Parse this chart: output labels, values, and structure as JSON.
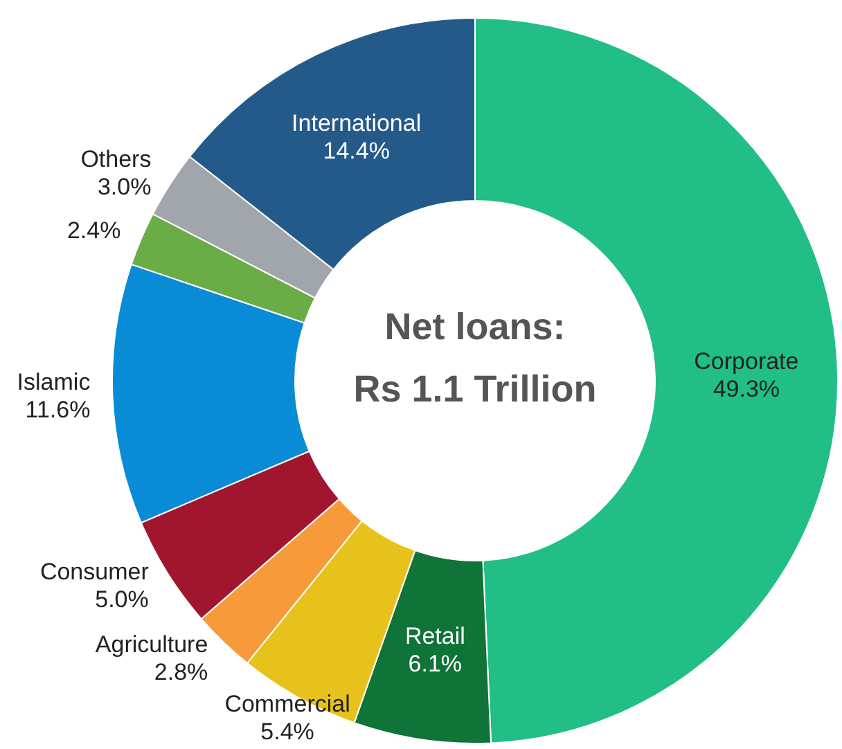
{
  "chart_data": {
    "type": "donut",
    "title": "Net loans:",
    "subtitle": "Rs 1.1 Trillion",
    "categories": [
      "Corporate",
      "Retail",
      "Commercial",
      "Agriculture",
      "Consumer",
      "Islamic",
      null,
      "Others",
      "International"
    ],
    "values": [
      49.3,
      6.1,
      5.4,
      2.8,
      5.0,
      11.6,
      2.4,
      3.0,
      14.4
    ],
    "colors": [
      "#21bf85",
      "#107338",
      "#e8c21c",
      "#f79a3a",
      "#a1162f",
      "#0a8bd6",
      "#6aac46",
      "#a0a6ac",
      "#245a8a"
    ],
    "value_labels": [
      "49.3%",
      "6.1%",
      "5.4%",
      "2.8%",
      "5.0%",
      "11.6%",
      "2.4%",
      "3.0%",
      "14.4%"
    ]
  }
}
